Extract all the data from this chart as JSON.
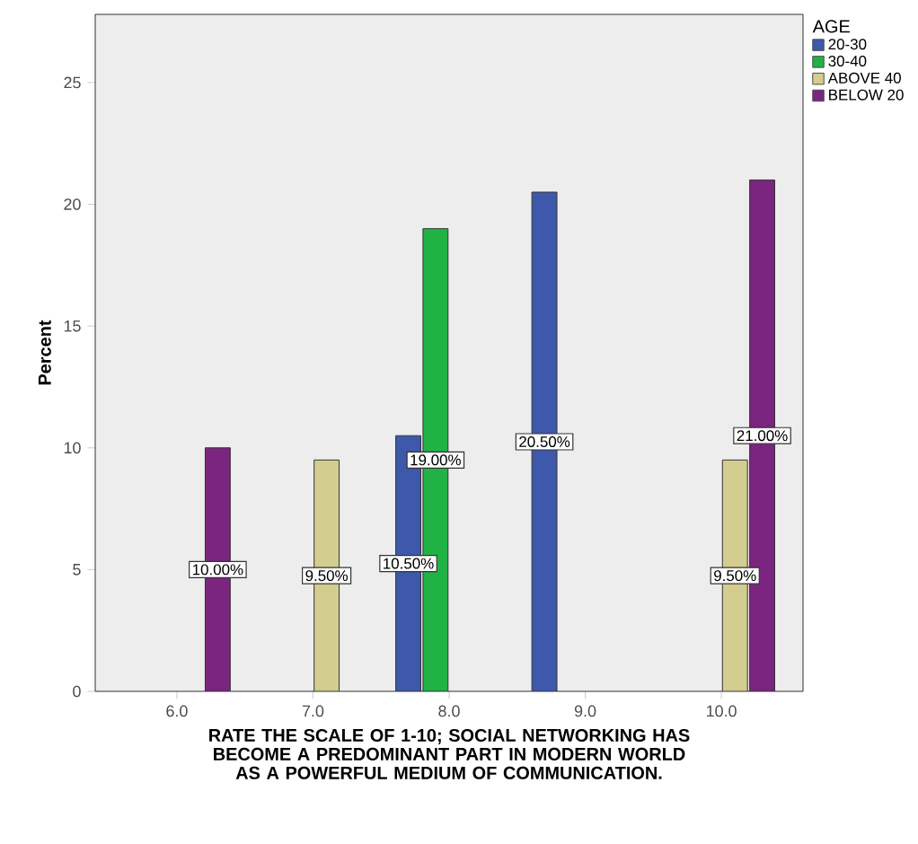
{
  "chart_data": {
    "type": "bar",
    "xlabel": "RATE THE SCALE OF 1-10; SOCIAL NETWORKING HAS BECOME A PREDOMINANT PART IN MODERN WORLD AS A POWERFUL MEDIUM OF COMMUNICATION.",
    "ylabel": "Percent",
    "legend_title": "AGE",
    "legend": "top right",
    "categories": [
      "6.0",
      "7.0",
      "8.0",
      "9.0",
      "10.0"
    ],
    "series": [
      {
        "name": "20-30",
        "color": "#3e58ac",
        "values": [
          null,
          null,
          10.5,
          20.5,
          null
        ],
        "value_labels": [
          null,
          null,
          "10.50%",
          "20.50%",
          null
        ]
      },
      {
        "name": "30-40",
        "color": "#21b246",
        "values": [
          null,
          null,
          19,
          null,
          null
        ],
        "value_labels": [
          null,
          null,
          "19.00%",
          null,
          null
        ]
      },
      {
        "name": "ABOVE 40",
        "color": "#d3cd8f",
        "values": [
          null,
          9.5,
          null,
          null,
          9.5
        ],
        "value_labels": [
          null,
          "9.50%",
          null,
          null,
          "9.50%"
        ]
      },
      {
        "name": "BELOW 20",
        "color": "#7b2480",
        "values": [
          10,
          null,
          null,
          null,
          21
        ],
        "value_labels": [
          "10.00%",
          null,
          null,
          null,
          "21.00%"
        ]
      }
    ],
    "ylim": [
      0,
      27.8
    ],
    "yticks": [
      0,
      5,
      10,
      15,
      20,
      25
    ],
    "grid": false
  }
}
